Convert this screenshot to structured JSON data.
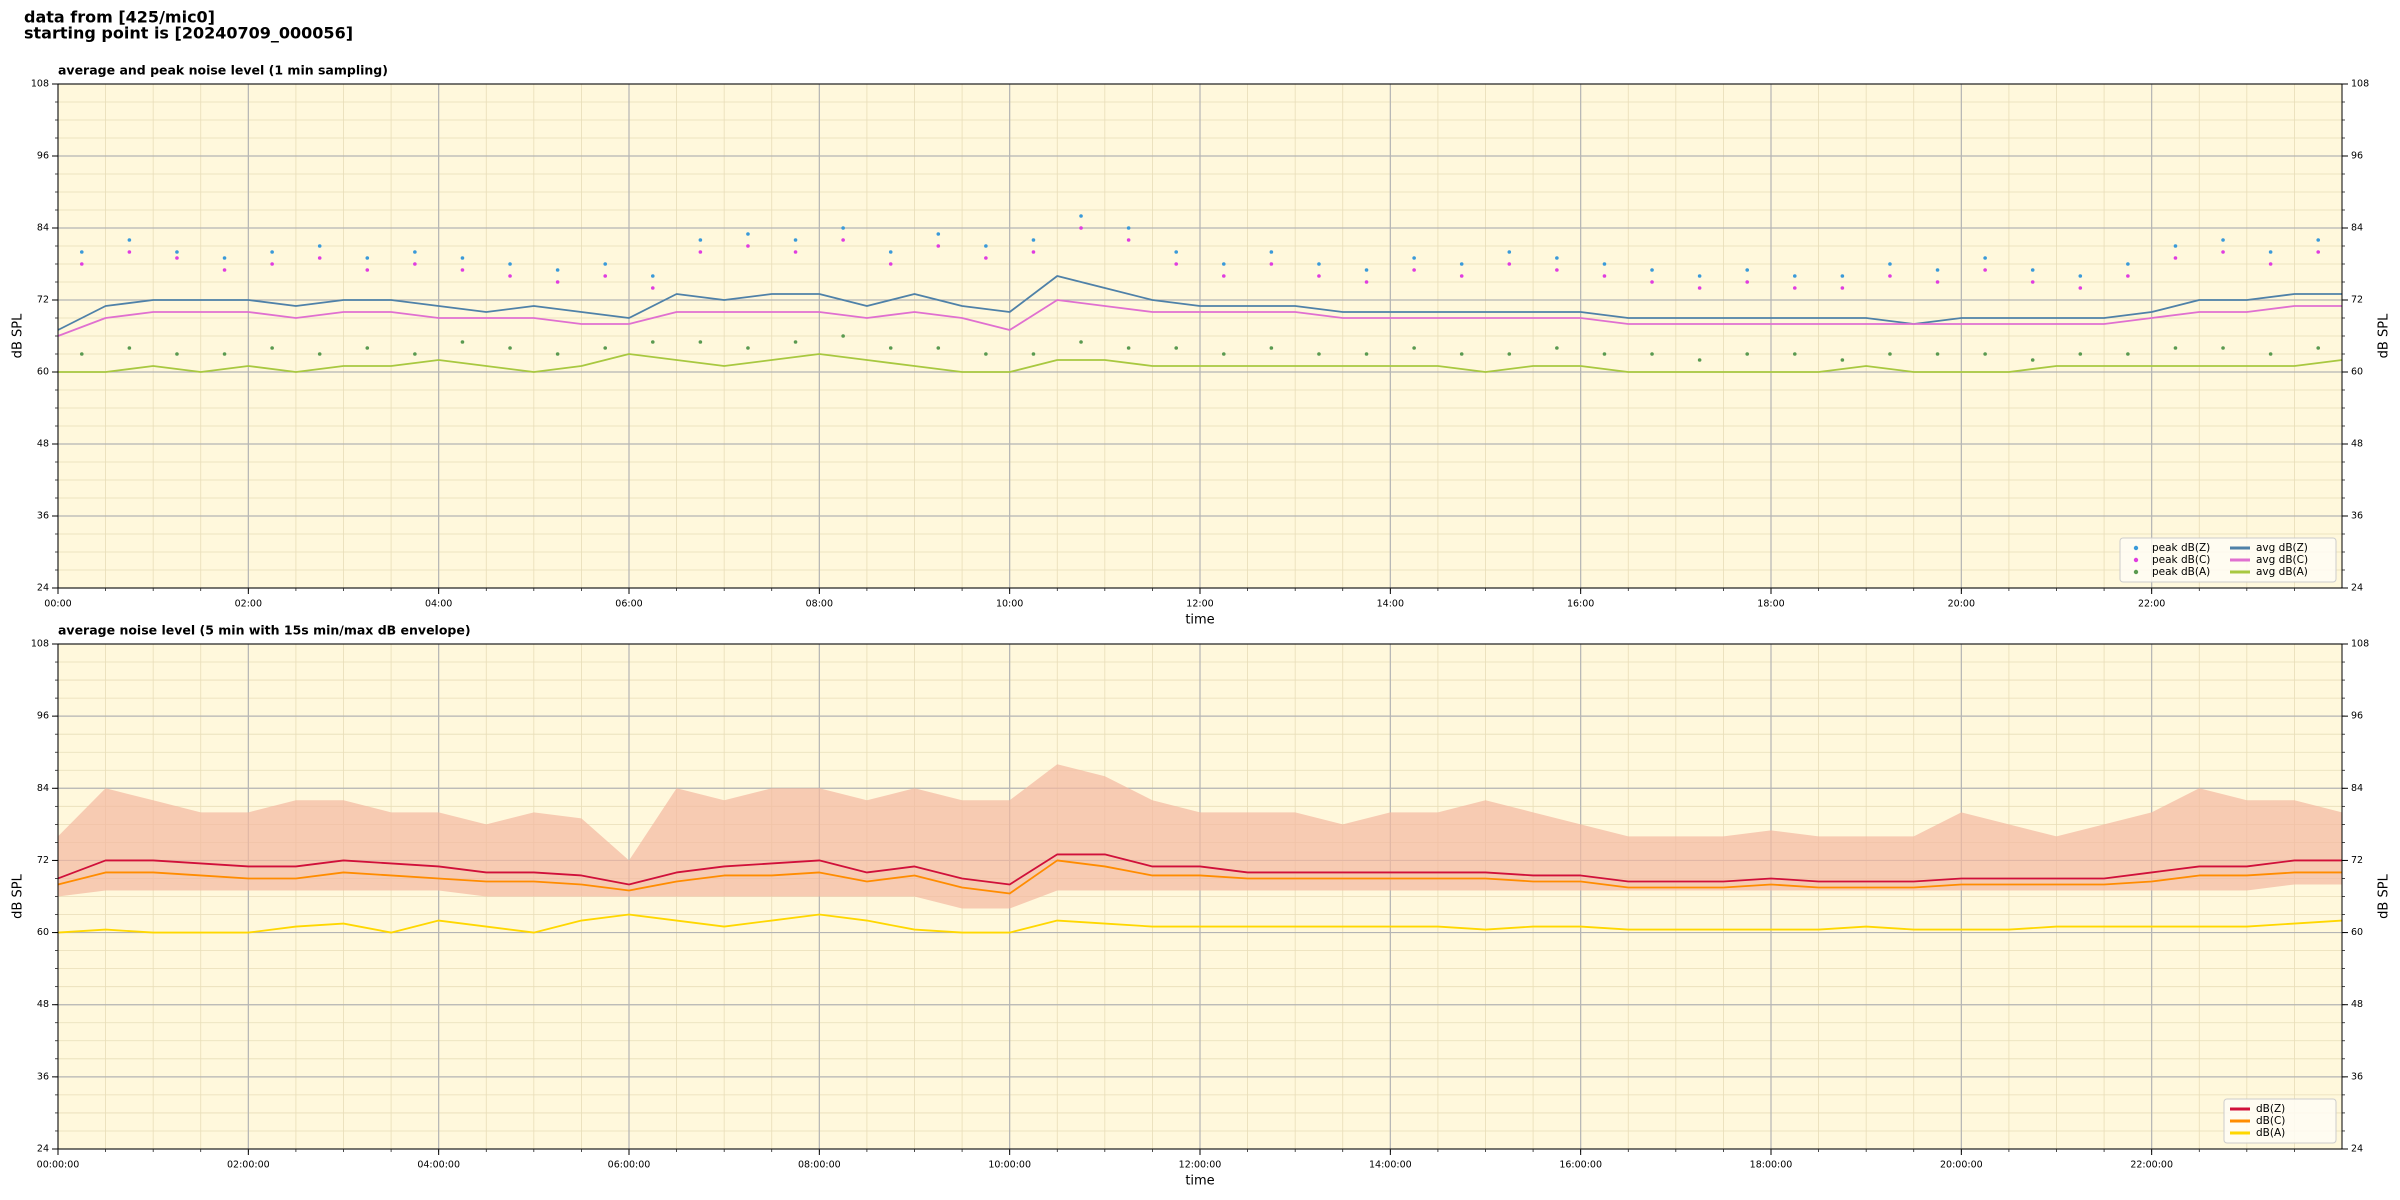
{
  "header": {
    "line1": "data from [425/mic0]",
    "line2": "starting point is [20240709_000056]"
  },
  "chart_data": [
    {
      "type": "line",
      "title": "average and peak noise level (1 min sampling)",
      "x_label": "time",
      "y_label": "dB SPL",
      "y2_label": "dB SPL",
      "background": "#fff8dc",
      "grid": true,
      "minor_grid": true,
      "legend": "lower right",
      "legend_columns": 2,
      "xlim": [
        0,
        24
      ],
      "xticks": [
        {
          "value": 0,
          "label": "00:00"
        },
        {
          "value": 2,
          "label": "02:00"
        },
        {
          "value": 4,
          "label": "04:00"
        },
        {
          "value": 6,
          "label": "06:00"
        },
        {
          "value": 8,
          "label": "08:00"
        },
        {
          "value": 10,
          "label": "10:00"
        },
        {
          "value": 12,
          "label": "12:00"
        },
        {
          "value": 14,
          "label": "14:00"
        },
        {
          "value": 16,
          "label": "16:00"
        },
        {
          "value": 18,
          "label": "18:00"
        },
        {
          "value": 20,
          "label": "20:00"
        },
        {
          "value": 22,
          "label": "22:00"
        }
      ],
      "ylim": [
        24,
        108
      ],
      "yticks": [
        24,
        36,
        48,
        60,
        72,
        84,
        96,
        108
      ],
      "y2lim": [
        24,
        108
      ],
      "y2ticks": [
        24,
        36,
        48,
        60,
        72,
        84,
        96,
        108
      ],
      "x": [
        0,
        0.5,
        1,
        1.5,
        2,
        2.5,
        3,
        3.5,
        4,
        4.5,
        5,
        5.5,
        6,
        6.5,
        7,
        7.5,
        8,
        8.5,
        9,
        9.5,
        10,
        10.5,
        11,
        11.5,
        12,
        12.5,
        13,
        13.5,
        14,
        14.5,
        15,
        15.5,
        16,
        16.5,
        17,
        17.5,
        18,
        18.5,
        19,
        19.5,
        20,
        20.5,
        21,
        21.5,
        22,
        22.5,
        23,
        23.5,
        24
      ],
      "series": [
        {
          "name": "peak dB(Z)",
          "type": "scatter",
          "color": "#3a9ad9",
          "x": [
            0.25,
            0.75,
            1.25,
            1.75,
            2.25,
            2.75,
            3.25,
            3.75,
            4.25,
            4.75,
            5.25,
            5.75,
            6.25,
            6.75,
            7.25,
            7.75,
            8.25,
            8.75,
            9.25,
            9.75,
            10.25,
            10.75,
            11.25,
            11.75,
            12.25,
            12.75,
            13.25,
            13.75,
            14.25,
            14.75,
            15.25,
            15.75,
            16.25,
            16.75,
            17.25,
            17.75,
            18.25,
            18.75,
            19.25,
            19.75,
            20.25,
            20.75,
            21.25,
            21.75,
            22.25,
            22.75,
            23.25,
            23.75
          ],
          "values": [
            80,
            82,
            80,
            79,
            80,
            81,
            79,
            80,
            79,
            78,
            77,
            78,
            76,
            82,
            83,
            82,
            84,
            80,
            83,
            81,
            82,
            86,
            84,
            80,
            78,
            80,
            78,
            77,
            79,
            78,
            80,
            79,
            78,
            77,
            76,
            77,
            76,
            76,
            78,
            77,
            79,
            77,
            76,
            78,
            81,
            82,
            80,
            82
          ]
        },
        {
          "name": "peak dB(C)",
          "type": "scatter",
          "color": "#e03ce0",
          "x": [
            0.25,
            0.75,
            1.25,
            1.75,
            2.25,
            2.75,
            3.25,
            3.75,
            4.25,
            4.75,
            5.25,
            5.75,
            6.25,
            6.75,
            7.25,
            7.75,
            8.25,
            8.75,
            9.25,
            9.75,
            10.25,
            10.75,
            11.25,
            11.75,
            12.25,
            12.75,
            13.25,
            13.75,
            14.25,
            14.75,
            15.25,
            15.75,
            16.25,
            16.75,
            17.25,
            17.75,
            18.25,
            18.75,
            19.25,
            19.75,
            20.25,
            20.75,
            21.25,
            21.75,
            22.25,
            22.75,
            23.25,
            23.75
          ],
          "values": [
            78,
            80,
            79,
            77,
            78,
            79,
            77,
            78,
            77,
            76,
            75,
            76,
            74,
            80,
            81,
            80,
            82,
            78,
            81,
            79,
            80,
            84,
            82,
            78,
            76,
            78,
            76,
            75,
            77,
            76,
            78,
            77,
            76,
            75,
            74,
            75,
            74,
            74,
            76,
            75,
            77,
            75,
            74,
            76,
            79,
            80,
            78,
            80
          ]
        },
        {
          "name": "peak dB(A)",
          "type": "scatter",
          "color": "#5a9a50",
          "x": [
            0.25,
            0.75,
            1.25,
            1.75,
            2.25,
            2.75,
            3.25,
            3.75,
            4.25,
            4.75,
            5.25,
            5.75,
            6.25,
            6.75,
            7.25,
            7.75,
            8.25,
            8.75,
            9.25,
            9.75,
            10.25,
            10.75,
            11.25,
            11.75,
            12.25,
            12.75,
            13.25,
            13.75,
            14.25,
            14.75,
            15.25,
            15.75,
            16.25,
            16.75,
            17.25,
            17.75,
            18.25,
            18.75,
            19.25,
            19.75,
            20.25,
            20.75,
            21.25,
            21.75,
            22.25,
            22.75,
            23.25,
            23.75
          ],
          "values": [
            63,
            64,
            63,
            63,
            64,
            63,
            64,
            63,
            65,
            64,
            63,
            64,
            65,
            65,
            64,
            65,
            66,
            64,
            64,
            63,
            63,
            65,
            64,
            64,
            63,
            64,
            63,
            63,
            64,
            63,
            63,
            64,
            63,
            63,
            62,
            63,
            63,
            62,
            63,
            63,
            63,
            62,
            63,
            63,
            64,
            64,
            63,
            64
          ]
        },
        {
          "name": "avg dB(Z)",
          "type": "line",
          "color": "#4f81a8",
          "values": [
            67,
            71,
            72,
            72,
            72,
            71,
            72,
            72,
            71,
            70,
            71,
            70,
            69,
            73,
            72,
            73,
            73,
            71,
            73,
            71,
            70,
            76,
            74,
            72,
            71,
            71,
            71,
            70,
            70,
            70,
            70,
            70,
            70,
            69,
            69,
            69,
            69,
            69,
            69,
            68,
            69,
            69,
            69,
            69,
            70,
            72,
            72,
            73,
            73
          ]
        },
        {
          "name": "avg dB(C)",
          "type": "line",
          "color": "#e070d0",
          "values": [
            66,
            69,
            70,
            70,
            70,
            69,
            70,
            70,
            69,
            69,
            69,
            68,
            68,
            70,
            70,
            70,
            70,
            69,
            70,
            69,
            67,
            72,
            71,
            70,
            70,
            70,
            70,
            69,
            69,
            69,
            69,
            69,
            69,
            68,
            68,
            68,
            68,
            68,
            68,
            68,
            68,
            68,
            68,
            68,
            69,
            70,
            70,
            71,
            71
          ]
        },
        {
          "name": "avg dB(A)",
          "type": "line",
          "color": "#a8c840",
          "values": [
            60,
            60,
            61,
            60,
            61,
            60,
            61,
            61,
            62,
            61,
            60,
            61,
            63,
            62,
            61,
            62,
            63,
            62,
            61,
            60,
            60,
            62,
            62,
            61,
            61,
            61,
            61,
            61,
            61,
            61,
            60,
            61,
            61,
            60,
            60,
            60,
            60,
            60,
            61,
            60,
            60,
            60,
            61,
            61,
            61,
            61,
            61,
            61,
            62
          ]
        }
      ]
    },
    {
      "type": "line",
      "title": "average noise level (5 min with 15s min/max dB envelope)",
      "x_label": "time",
      "y_label": "dB SPL",
      "y2_label": "dB SPL",
      "background": "#fff8dc",
      "grid": true,
      "minor_grid": true,
      "legend": "lower right",
      "legend_columns": 1,
      "xlim": [
        0,
        24
      ],
      "xticks": [
        {
          "value": 0,
          "label": "00:00:00"
        },
        {
          "value": 2,
          "label": "02:00:00"
        },
        {
          "value": 4,
          "label": "04:00:00"
        },
        {
          "value": 6,
          "label": "06:00:00"
        },
        {
          "value": 8,
          "label": "08:00:00"
        },
        {
          "value": 10,
          "label": "10:00:00"
        },
        {
          "value": 12,
          "label": "12:00:00"
        },
        {
          "value": 14,
          "label": "14:00:00"
        },
        {
          "value": 16,
          "label": "16:00:00"
        },
        {
          "value": 18,
          "label": "18:00:00"
        },
        {
          "value": 20,
          "label": "20:00:00"
        },
        {
          "value": 22,
          "label": "22:00:00"
        }
      ],
      "ylim": [
        24,
        108
      ],
      "yticks": [
        24,
        36,
        48,
        60,
        72,
        84,
        96,
        108
      ],
      "y2lim": [
        24,
        108
      ],
      "y2ticks": [
        24,
        36,
        48,
        60,
        72,
        84,
        96,
        108
      ],
      "x": [
        0,
        0.5,
        1,
        1.5,
        2,
        2.5,
        3,
        3.5,
        4,
        4.5,
        5,
        5.5,
        6,
        6.5,
        7,
        7.5,
        8,
        8.5,
        9,
        9.5,
        10,
        10.5,
        11,
        11.5,
        12,
        12.5,
        13,
        13.5,
        14,
        14.5,
        15,
        15.5,
        16,
        16.5,
        17,
        17.5,
        18,
        18.5,
        19,
        19.5,
        20,
        20.5,
        21,
        21.5,
        22,
        22.5,
        23,
        23.5,
        24
      ],
      "envelope": {
        "color": "#f4b8a0",
        "lower": [
          66,
          67,
          67,
          67,
          67,
          67,
          67,
          67,
          67,
          66,
          66,
          66,
          66,
          66,
          66,
          66,
          66,
          66,
          66,
          64,
          64,
          67,
          67,
          67,
          67,
          67,
          67,
          67,
          67,
          67,
          67,
          67,
          67,
          67,
          67,
          67,
          67,
          67,
          67,
          67,
          67,
          67,
          67,
          67,
          67,
          67,
          67,
          68,
          68
        ],
        "upper": [
          76,
          84,
          82,
          80,
          80,
          82,
          82,
          80,
          80,
          78,
          80,
          79,
          72,
          84,
          82,
          84,
          84,
          82,
          84,
          82,
          82,
          88,
          86,
          82,
          80,
          80,
          80,
          78,
          80,
          80,
          82,
          80,
          78,
          76,
          76,
          76,
          77,
          76,
          76,
          76,
          80,
          78,
          76,
          78,
          80,
          84,
          82,
          82,
          80
        ]
      },
      "series": [
        {
          "name": "dB(Z)",
          "type": "line",
          "color": "#d0103a",
          "values": [
            69,
            72,
            72,
            71.5,
            71,
            71,
            72,
            71.5,
            71,
            70,
            70,
            69.5,
            68,
            70,
            71,
            71.5,
            72,
            70,
            71,
            69,
            68,
            73,
            73,
            71,
            71,
            70,
            70,
            70,
            70,
            70,
            70,
            69.5,
            69.5,
            68.5,
            68.5,
            68.5,
            69,
            68.5,
            68.5,
            68.5,
            69,
            69,
            69,
            69,
            70,
            71,
            71,
            72,
            72
          ]
        },
        {
          "name": "dB(C)",
          "type": "line",
          "color": "#ff8c00",
          "values": [
            68,
            70,
            70,
            69.5,
            69,
            69,
            70,
            69.5,
            69,
            68.5,
            68.5,
            68,
            67,
            68.5,
            69.5,
            69.5,
            70,
            68.5,
            69.5,
            67.5,
            66.5,
            72,
            71,
            69.5,
            69.5,
            69,
            69,
            69,
            69,
            69,
            69,
            68.5,
            68.5,
            67.5,
            67.5,
            67.5,
            68,
            67.5,
            67.5,
            67.5,
            68,
            68,
            68,
            68,
            68.5,
            69.5,
            69.5,
            70,
            70
          ]
        },
        {
          "name": "dB(A)",
          "type": "line",
          "color": "#ffd700",
          "values": [
            60,
            60.5,
            60,
            60,
            60,
            61,
            61.5,
            60,
            62,
            61,
            60,
            62,
            63,
            62,
            61,
            62,
            63,
            62,
            60.5,
            60,
            60,
            62,
            61.5,
            61,
            61,
            61,
            61,
            61,
            61,
            61,
            60.5,
            61,
            61,
            60.5,
            60.5,
            60.5,
            60.5,
            60.5,
            61,
            60.5,
            60.5,
            60.5,
            61,
            61,
            61,
            61,
            61,
            61.5,
            62
          ]
        }
      ]
    }
  ]
}
